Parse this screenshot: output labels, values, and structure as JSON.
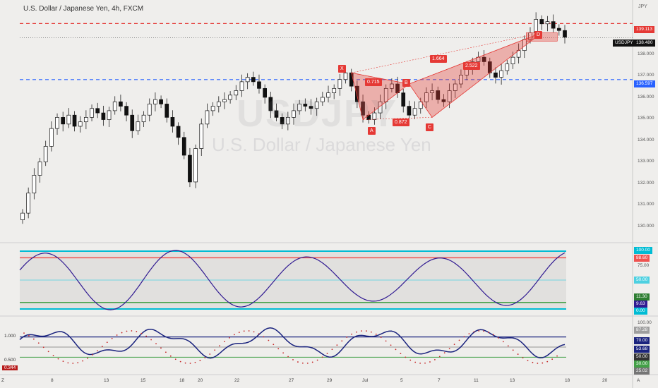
{
  "header": {
    "title": "U.S. Dollar / Japanese Yen, 4h, FXCM"
  },
  "watermark": {
    "symbol": "USDJPY",
    "name": "U.S. Dollar / Japanese Yen"
  },
  "price_axis": {
    "currency": "JPY",
    "ticks": [
      "138.000",
      "137.000",
      "136.000",
      "135.000",
      "134.000",
      "133.000",
      "132.000",
      "131.000",
      "130.000"
    ],
    "resistance": "139.113",
    "last_price": "138.480",
    "support": "136.597",
    "symbol_badge": "USDJPY"
  },
  "osc_axis": {
    "labels": [
      "100.00",
      "88.60",
      "75.00",
      "50.00",
      "11.30",
      "9.63",
      "0.00"
    ]
  },
  "rsi_axis": {
    "labels": [
      "100.00",
      "87.28",
      "70.00",
      "53.68",
      "50.00",
      "30.00",
      "25.02"
    ],
    "left_labels": [
      "1.000",
      "0.500",
      "0.344"
    ]
  },
  "time_axis": {
    "labels": [
      "Z",
      "8",
      "13",
      "15",
      "18",
      "20",
      "22",
      "27",
      "29",
      "Jul",
      "5",
      "7",
      "11",
      "13",
      "18",
      "20",
      "A"
    ]
  },
  "pattern": {
    "points": [
      "X",
      "A",
      "B",
      "C",
      "D"
    ],
    "ratios": [
      "0.715",
      "0.872",
      "2.522",
      "1.664"
    ]
  },
  "colors": {
    "up": "#26a69a",
    "down": "#111111",
    "pattern": "#e53935",
    "resistance": "#e53935",
    "support": "#2962ff",
    "osc_line": "#311b92",
    "band_cyan": "#00bcd4"
  },
  "chart_data": {
    "type": "candlestick",
    "title": "U.S. Dollar / Japanese Yen, 4h, FXCM",
    "ylim": [
      129.4,
      139.6
    ],
    "levels": {
      "resistance": 139.113,
      "support": 136.597,
      "last": 138.48
    },
    "close_path": [
      130.6,
      131.5,
      132.3,
      132.9,
      133.6,
      134.4,
      134.9,
      134.6,
      135.0,
      134.5,
      134.7,
      134.9,
      135.3,
      135.1,
      134.8,
      135.2,
      135.6,
      135.4,
      135.0,
      134.3,
      134.7,
      135.0,
      135.5,
      135.7,
      135.5,
      134.9,
      134.5,
      134.0,
      133.2,
      132.0,
      133.5,
      134.6,
      135.2,
      135.4,
      135.6,
      135.7,
      135.9,
      136.1,
      136.5,
      136.7,
      136.5,
      136.2,
      135.8,
      135.2,
      134.9,
      134.6,
      134.9,
      135.2,
      135.5,
      135.4,
      135.3,
      135.6,
      135.8,
      136.0,
      136.2,
      136.6,
      136.9,
      136.3,
      135.6,
      135.0,
      134.8,
      135.1,
      135.6,
      136.2,
      136.4,
      136.0,
      135.4,
      135.0,
      135.3,
      135.6,
      136.0,
      136.1,
      135.7,
      135.6,
      136.1,
      136.4,
      136.8,
      137.1,
      137.4,
      137.6,
      137.4,
      136.9,
      136.7,
      137.0,
      137.3,
      137.6,
      137.9,
      138.4,
      138.7,
      139.3,
      139.1,
      139.2,
      138.9,
      138.8,
      138.5
    ],
    "harmonic_pattern": {
      "points": [
        {
          "label": "X",
          "value": 136.9
        },
        {
          "label": "A",
          "value": 134.8
        },
        {
          "label": "B",
          "value": 136.4
        },
        {
          "label": "C",
          "value": 134.9
        },
        {
          "label": "D",
          "value": 138.7
        }
      ],
      "ratios": [
        0.715,
        0.872,
        2.522,
        1.664
      ]
    },
    "oscillator": {
      "levels": [
        100,
        88.6,
        75,
        50,
        11.3,
        0
      ],
      "last": 9.63
    },
    "rsi_panel": {
      "levels": [
        100,
        87.28,
        70,
        53.68,
        50,
        30,
        25.02
      ]
    }
  }
}
